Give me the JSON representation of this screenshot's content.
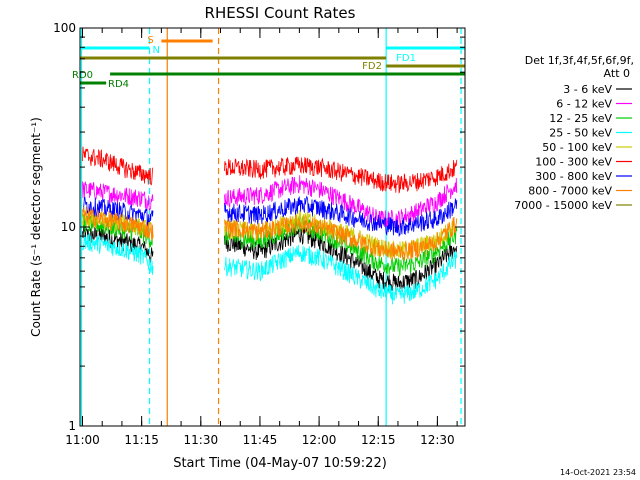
{
  "chart_data": {
    "type": "line",
    "title": "RHESSI Count Rates",
    "xlabel": "Start Time (04-May-07 10:59:22)",
    "ylabel": "Count Rate (s⁻¹ detector segment⁻¹)",
    "yscale": "log",
    "ylim": [
      1,
      100
    ],
    "xlim": [
      "10:59:22",
      "12:37:00"
    ],
    "x_ticks": [
      "11:00",
      "11:15",
      "11:30",
      "11:45",
      "12:00",
      "12:15",
      "12:30"
    ],
    "y_ticks": [
      "1",
      "10",
      "100"
    ],
    "legend_header": [
      "Det 1f,3f,4f,5f,6f,9f,",
      "Att 0"
    ],
    "legend_position": "right",
    "timestamp": "14-Oct-2021 23:54",
    "series": [
      {
        "name": "3 - 6 keV",
        "color": "#000000",
        "x": [
          "11:00",
          "11:05",
          "11:10",
          "11:15",
          "11:18",
          "11:36",
          "11:45",
          "11:55",
          "12:00",
          "12:10",
          "12:15",
          "12:20",
          "12:25",
          "12:30",
          "12:35"
        ],
        "y": [
          9.2,
          9.0,
          8.5,
          8.0,
          7.0,
          8.5,
          7.5,
          9.3,
          8.5,
          6.5,
          5.5,
          5.2,
          5.5,
          6.5,
          8.0
        ]
      },
      {
        "name": "6 - 12 keV",
        "color": "#ff00ff",
        "x": [
          "11:00",
          "11:05",
          "11:10",
          "11:15",
          "11:18",
          "11:36",
          "11:45",
          "11:55",
          "12:00",
          "12:10",
          "12:15",
          "12:20",
          "12:25",
          "12:30",
          "12:35"
        ],
        "y": [
          15.5,
          15.0,
          14.5,
          14.0,
          13.5,
          14.0,
          14.5,
          16.5,
          15.5,
          12.5,
          11.0,
          11.0,
          12.0,
          13.5,
          16.5
        ]
      },
      {
        "name": "12 - 25 keV",
        "color": "#00cc00",
        "x": [
          "11:00",
          "11:05",
          "11:10",
          "11:15",
          "11:18",
          "11:36",
          "11:45",
          "11:55",
          "12:00",
          "12:10",
          "12:15",
          "12:20",
          "12:25",
          "12:30",
          "12:35"
        ],
        "y": [
          10.5,
          10.2,
          9.8,
          9.4,
          8.5,
          9.0,
          8.5,
          10.3,
          9.5,
          7.6,
          6.6,
          6.3,
          6.6,
          7.6,
          9.3
        ]
      },
      {
        "name": "25 - 50 keV",
        "color": "#00ffff",
        "x": [
          "11:00",
          "11:05",
          "11:10",
          "11:15",
          "11:18",
          "11:36",
          "11:45",
          "11:55",
          "12:00",
          "12:10",
          "12:15",
          "12:20",
          "12:25",
          "12:30",
          "12:35"
        ],
        "y": [
          8.5,
          8.2,
          7.8,
          7.2,
          6.3,
          6.4,
          6.0,
          7.5,
          7.0,
          5.5,
          4.8,
          4.5,
          4.8,
          5.5,
          7.0
        ]
      },
      {
        "name": "50 - 100 keV",
        "color": "#cccc00",
        "x": [
          "11:00",
          "11:05",
          "11:10",
          "11:15",
          "11:18",
          "11:36",
          "11:45",
          "11:55",
          "12:00",
          "12:10",
          "12:15",
          "12:20",
          "12:25",
          "12:30",
          "12:35"
        ],
        "y": [
          11.0,
          10.8,
          10.5,
          10.0,
          9.5,
          9.8,
          9.5,
          11.0,
          10.3,
          8.8,
          8.0,
          7.6,
          8.0,
          8.6,
          10.5
        ]
      },
      {
        "name": "100 - 300 keV",
        "color": "#ff0000",
        "x": [
          "11:00",
          "11:05",
          "11:10",
          "11:15",
          "11:18",
          "11:36",
          "11:45",
          "11:55",
          "12:00",
          "12:10",
          "12:15",
          "12:20",
          "12:25",
          "12:30",
          "12:35"
        ],
        "y": [
          23.0,
          22.0,
          20.0,
          18.5,
          18.0,
          20.0,
          19.5,
          20.5,
          20.0,
          18.0,
          17.0,
          16.5,
          17.0,
          18.0,
          20.0
        ]
      },
      {
        "name": "300 - 800 keV",
        "color": "#0000ff",
        "x": [
          "11:00",
          "11:05",
          "11:10",
          "11:15",
          "11:18",
          "11:36",
          "11:45",
          "11:55",
          "12:00",
          "12:10",
          "12:15",
          "12:20",
          "12:25",
          "12:30",
          "12:35"
        ],
        "y": [
          13.0,
          12.5,
          12.0,
          11.5,
          11.0,
          12.0,
          11.5,
          13.0,
          12.5,
          11.0,
          10.5,
          10.0,
          10.5,
          11.0,
          13.0
        ]
      },
      {
        "name": "800 - 7000 keV",
        "color": "#ff8000",
        "x": [
          "11:00",
          "11:05",
          "11:10",
          "11:15",
          "11:18",
          "11:36",
          "11:45",
          "11:55",
          "12:00",
          "12:10",
          "12:15",
          "12:20",
          "12:25",
          "12:30",
          "12:35"
        ],
        "y": [
          11.5,
          11.0,
          10.5,
          10.0,
          9.5,
          10.0,
          9.5,
          10.5,
          10.0,
          8.5,
          7.8,
          7.5,
          7.8,
          8.5,
          10.5
        ]
      },
      {
        "name": "7000 - 15000 keV",
        "color": "#808000",
        "x": [],
        "y": []
      }
    ],
    "attenuator_bars": [
      {
        "label": "",
        "color": "#00ffff",
        "start": "10:59:22",
        "end": "11:17:00"
      },
      {
        "label": "S",
        "color": "#ff8000",
        "start": "11:20:00",
        "end": "11:33:00"
      },
      {
        "label": "N",
        "color": "#00ffff",
        "start": "11:18:30",
        "end": "11:19:30"
      },
      {
        "label": "FD1",
        "color": "#00ffff",
        "start": "12:17:00",
        "end": "12:37:00"
      },
      {
        "label": "",
        "color": "#808000",
        "start": "10:59:22",
        "end": "12:17:00"
      },
      {
        "label": "FD2",
        "color": "#808000",
        "start": "12:17:00",
        "end": "12:37:00"
      },
      {
        "label": "RD0",
        "color": "#008000",
        "start": "11:07:00",
        "end": "12:37:00"
      },
      {
        "label": "RD4",
        "color": "#008000",
        "start": "10:59:22",
        "end": "11:06:00"
      }
    ],
    "vertical_lines": [
      {
        "x": "11:17:00",
        "color": "#00ffff",
        "style": "dashed"
      },
      {
        "x": "11:21:30",
        "color": "#ff8000",
        "style": "solid"
      },
      {
        "x": "11:34:30",
        "color": "#ff8000",
        "style": "dashed"
      },
      {
        "x": "12:17:00",
        "color": "#00ffff",
        "style": "solid"
      },
      {
        "x": "12:36:00",
        "color": "#00ffff",
        "style": "dashed"
      },
      {
        "x": "10:59:45",
        "color": "#00ffff",
        "style": "solid"
      }
    ],
    "data_gaps": [
      [
        "11:18:00",
        "11:36:00"
      ]
    ]
  }
}
